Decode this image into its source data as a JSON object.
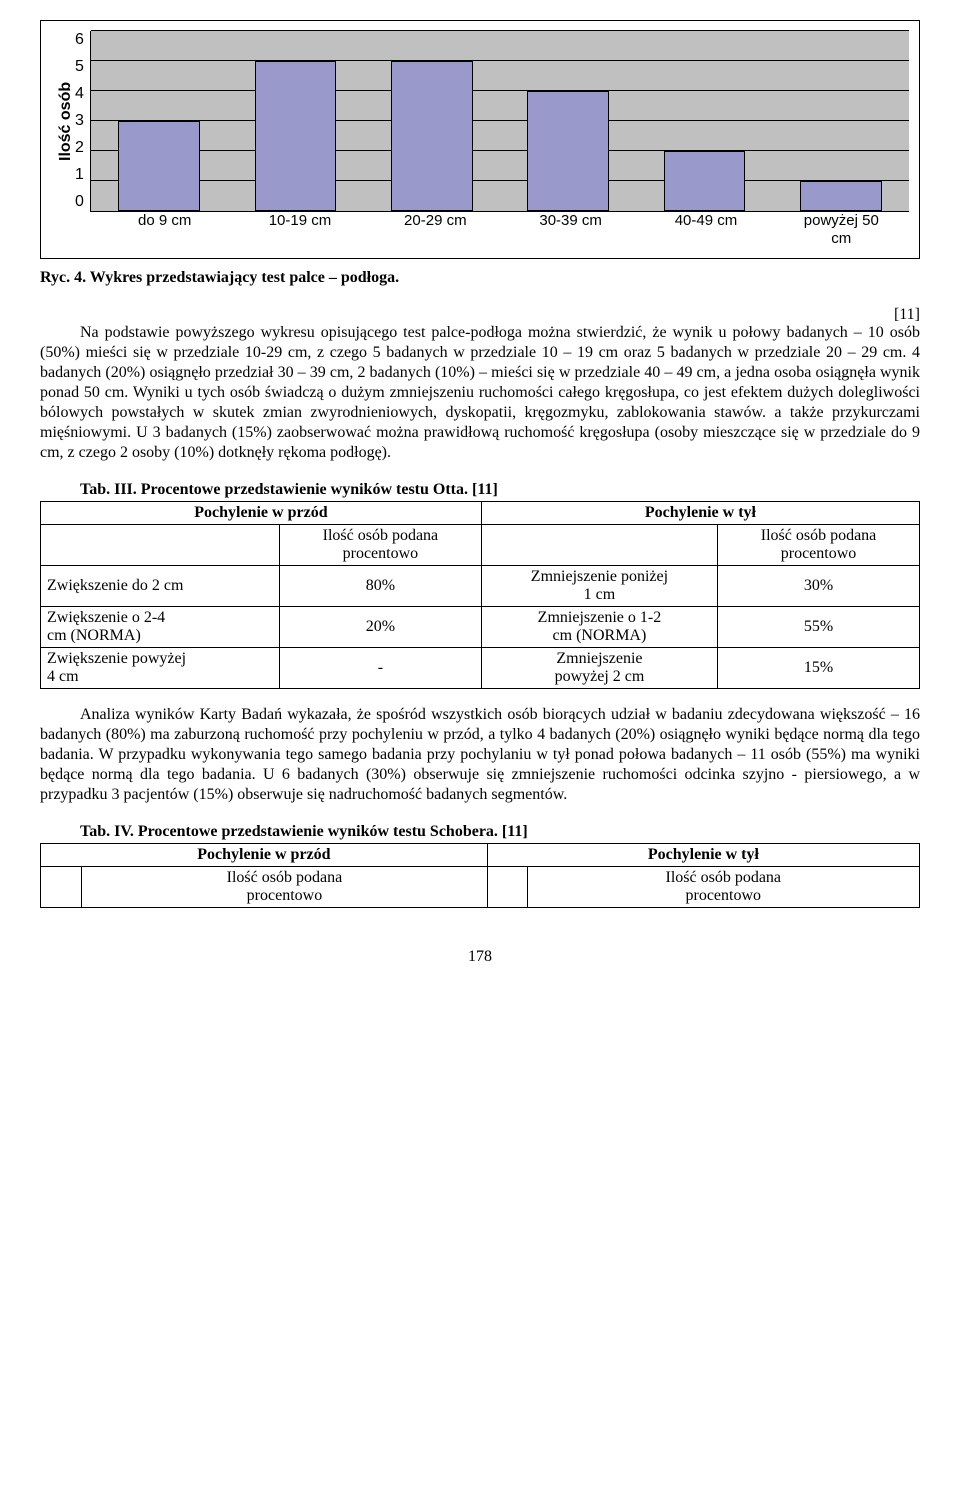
{
  "chart": {
    "type": "bar",
    "ylabel": "Ilość osób",
    "ymax": 6,
    "yticks": [
      "6",
      "5",
      "4",
      "3",
      "2",
      "1",
      "0"
    ],
    "categories": [
      "do 9 cm",
      "10-19 cm",
      "20-29 cm",
      "30-39 cm",
      "40-49 cm",
      "powyżej 50\ncm"
    ],
    "values": [
      3,
      5,
      5,
      4,
      2,
      1
    ],
    "bar_color": "#9999cc",
    "plot_bg": "#c0c0c0",
    "grid_color": "#000000",
    "bar_width_pct": 10,
    "slot_width_pct": 16.6667
  },
  "fig_caption": "Ryc. 4. Wykres przedstawiający test palce – podłoga.",
  "paragraph1_sup": "[11]",
  "paragraph1": "Na podstawie powyższego wykresu opisującego test palce-podłoga można stwierdzić, że wynik u połowy badanych – 10 osób (50%) mieści się w przedziale 10-29 cm, z czego 5 badanych w przedziale 10 – 19 cm oraz 5 badanych w przedziale 20 – 29 cm. 4 badanych (20%) osiągnęło przedział 30 – 39 cm, 2 badanych (10%) – mieści się w przedziale 40 – 49 cm, a jedna osoba osiągnęła wynik ponad 50 cm. Wyniki u tych osób świadczą o dużym zmniejszeniu ruchomości całego kręgosłupa, co jest efektem dużych dolegliwości bólowych powstałych w skutek zmian zwyrodnieniowych, dyskopatii, kręgozmyku, zablokowania stawów. a także przykurczami mięśniowymi. U 3 badanych (15%) zaobserwować można prawidłową ruchomość kręgosłupa (osoby mieszczące się w przedziale do 9 cm, z czego 2 osoby (10%) dotknęły rękoma podłogę).",
  "table3": {
    "title": "Tab. III. Procentowe przedstawienie wyników testu Otta. [11]",
    "h_left": "Pochylenie w przód",
    "h_right": "Pochylenie w tył",
    "sub_left": "Ilość osób podana\nprocentowo",
    "sub_right": "Ilość osób podana\nprocentowo",
    "rows": [
      [
        "Zwiększenie do 2 cm",
        "80%",
        "Zmniejszenie poniżej\n1 cm",
        "30%"
      ],
      [
        "Zwiększenie o 2-4\ncm (NORMA)",
        "20%",
        "Zmniejszenie o 1-2\ncm (NORMA)",
        "55%"
      ],
      [
        "Zwiększenie powyżej\n4 cm",
        "-",
        "Zmniejszenie\npowyżej 2 cm",
        "15%"
      ]
    ]
  },
  "paragraph2": "Analiza wyników Karty Badań wykazała, że spośród wszystkich osób biorących udział w badaniu zdecydowana większość – 16 badanych (80%) ma zaburzoną ruchomość przy pochyleniu w przód, a tylko 4 badanych (20%) osiągnęło wyniki będące normą dla tego badania. W przypadku wykonywania tego samego badania przy pochylaniu w tył ponad połowa badanych – 11 osób (55%) ma wyniki będące normą dla tego badania. U 6 badanych (30%) obserwuje się zmniejszenie ruchomości odcinka szyjno - piersiowego, a w przypadku 3 pacjentów (15%) obserwuje się nadruchomość badanych segmentów.",
  "table4": {
    "title": "Tab. IV. Procentowe przedstawienie wyników testu Schobera. [11]",
    "h_left": "Pochylenie w przód",
    "h_right": "Pochylenie w tył",
    "sub_left": "Ilość osób podana\nprocentowo",
    "sub_right": "Ilość osób podana\nprocentowo"
  },
  "page_number": "178"
}
